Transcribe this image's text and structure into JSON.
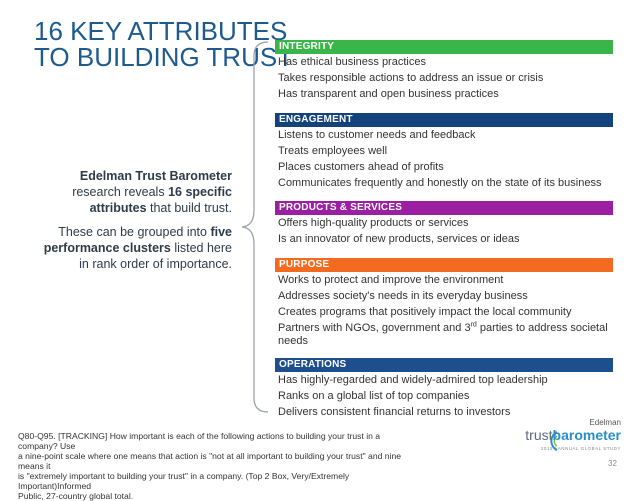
{
  "title": {
    "line1": "16 KEY ATTRIBUTES",
    "line2": "TO BUILDING TRUST"
  },
  "intro": {
    "p1_a": "Edelman Trust Barometer",
    "p1_b": "research reveals ",
    "p1_c": "16 specific attributes",
    "p1_d": " that build trust.",
    "p2_a": "These can be grouped into ",
    "p2_b": "five performance clusters",
    "p2_c": " listed here in rank order of importance."
  },
  "sections": {
    "integrity": {
      "label": "INTEGRITY",
      "color": "#3ab54a",
      "items": [
        "Has ethical business practices",
        "Takes responsible actions to address an issue or crisis",
        "Has transparent and open business practices"
      ]
    },
    "engagement": {
      "label": "ENGAGEMENT",
      "color": "#14427a",
      "items": [
        "Listens to customer needs and feedback",
        "Treats employees well",
        "Places customers ahead of profits",
        "Communicates frequently and honestly on the state of its business"
      ]
    },
    "products": {
      "label": "PRODUCTS & SERVICES",
      "color": "#9b1fa3",
      "items": [
        "Offers high-quality products or services",
        "Is an innovator of new products, services or ideas"
      ]
    },
    "purpose": {
      "label": "PURPOSE",
      "color": "#f26b21",
      "items": [
        "Works to protect and improve the environment",
        "Addresses society's needs in its everyday business",
        "Creates programs that positively impact the local community"
      ],
      "item4_a": "Partners with NGOs, government and 3",
      "item4_sup": "rd",
      "item4_b": " parties to address societal needs"
    },
    "operations": {
      "label": "OPERATIONS",
      "color": "#1c4f8c",
      "items": [
        "Has highly-regarded and widely-admired top leadership",
        "Ranks on a global list of top companies",
        "Delivers consistent financial returns to investors"
      ]
    }
  },
  "footnote": {
    "line1": "Q80-Q95. [TRACKING] How important is each of the following actions to building your trust in a company? Use",
    "line2": "a nine-point scale where one means that action is \"not at all important to building your trust\" and nine means it",
    "line3": "is \"extremely important to building your trust\" in a company. (Top 2 Box, Very/Extremely Important)Informed",
    "line4": "Public, 27-country global total."
  },
  "logo": {
    "brand": "Edelman",
    "word_a": "trust",
    "word_b": "barometer",
    "tagline": "2015 | ANNUAL GLOBAL STUDY"
  },
  "page_number": "32"
}
